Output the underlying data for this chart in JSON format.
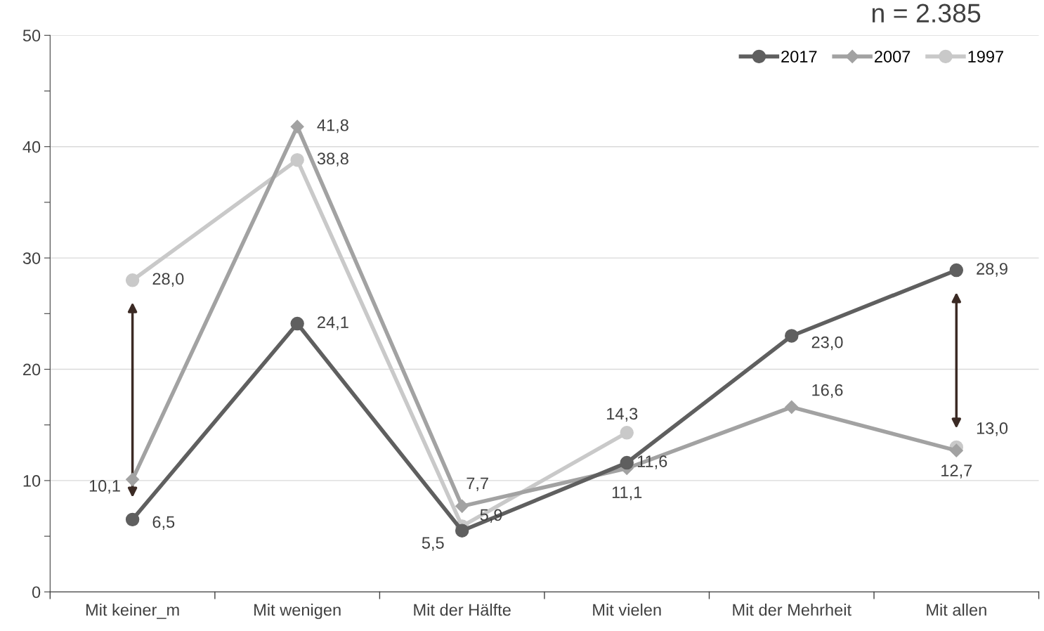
{
  "chart_data": {
    "type": "line",
    "categories": [
      "Mit keiner_m",
      "Mit wenigen",
      "Mit der Hälfte",
      "Mit vielen",
      "Mit der Mehrheit",
      "Mit allen"
    ],
    "series": [
      {
        "name": "2017",
        "color": "#5f5f5f",
        "marker": "circle",
        "values": [
          6.5,
          24.1,
          5.5,
          11.6,
          23.0,
          28.9
        ],
        "value_labels": [
          "6,5",
          "24,1",
          "5,5",
          "11,6",
          "23,0",
          "28,9"
        ]
      },
      {
        "name": "2007",
        "color": "#a2a2a2",
        "marker": "diamond",
        "values": [
          10.1,
          41.8,
          7.7,
          11.1,
          16.6,
          12.7
        ],
        "value_labels": [
          "10,1",
          "41,8",
          "7,7",
          "11,1",
          "16,6",
          "12,7"
        ]
      },
      {
        "name": "1997",
        "color": "#c9c9c9",
        "marker": "circle",
        "values": [
          28.0,
          38.8,
          5.9,
          14.3,
          null,
          13.0
        ],
        "value_labels": [
          "28,0",
          "38,8",
          "5,9",
          "14,3",
          null,
          "13,0"
        ]
      }
    ],
    "ylim": [
      0,
      50
    ],
    "yticks": [
      0,
      {
        "value": 5,
        "label": null
      },
      10,
      {
        "value": 15,
        "label": null
      },
      20,
      {
        "value": 25,
        "label": null
      },
      30,
      {
        "value": 35,
        "label": null
      },
      40,
      {
        "value": 45,
        "label": null
      },
      50
    ],
    "grid": "y",
    "legend": "top right",
    "line_style": "solid",
    "annotations": [
      "n = 2.385"
    ]
  }
}
